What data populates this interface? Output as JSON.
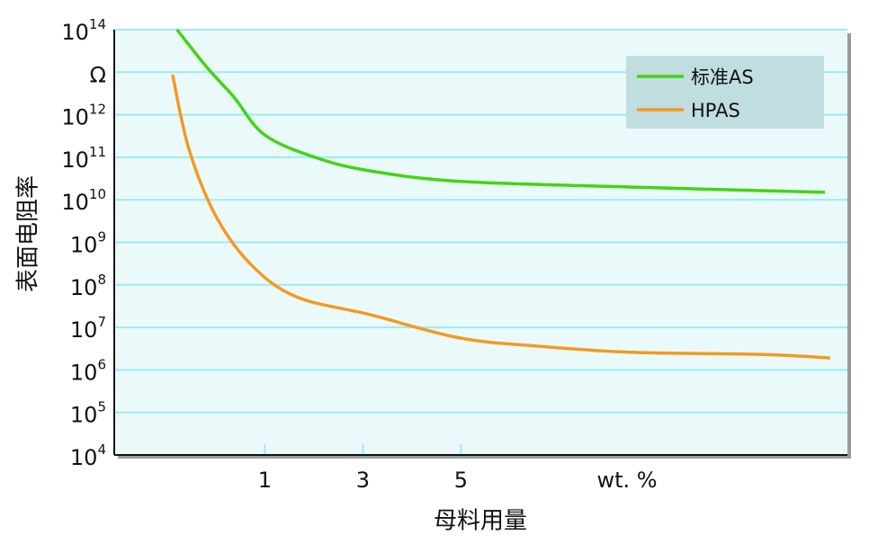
{
  "chart_data": {
    "type": "line",
    "y_label": "表面电阻率",
    "x_label": "母料用量",
    "x_unit": "wt. %",
    "log_y": true,
    "grid": true,
    "legend": "upper right",
    "xlim": [
      -2.07,
      12.88
    ],
    "xticks": [
      1,
      3,
      5
    ],
    "ylim": [
      10000,
      100000000000000.0
    ],
    "yticks": [
      {
        "value": 10000,
        "label": "10",
        "exponent": "4"
      },
      {
        "value": 100000,
        "label": "10",
        "exponent": "5"
      },
      {
        "value": 1000000,
        "label": "10",
        "exponent": "6"
      },
      {
        "value": 10000000,
        "label": "10",
        "exponent": "7"
      },
      {
        "value": 100000000,
        "label": "10",
        "exponent": "8"
      },
      {
        "value": 1000000000,
        "label": "10",
        "exponent": "9"
      },
      {
        "value": 10000000000,
        "label": "10",
        "exponent": "10"
      },
      {
        "value": 100000000000,
        "label": "10",
        "exponent": "11"
      },
      {
        "value": 1000000000000,
        "label": "10",
        "exponent": "12"
      },
      {
        "value": 10000000000000,
        "label": "Ω"
      },
      {
        "value": 100000000000000.0,
        "label": "10",
        "exponent": "14"
      }
    ],
    "series": [
      {
        "name": "标准AS",
        "color": "#44d414",
        "x": [
          -0.79,
          -0.18,
          0.37,
          0.99,
          2.02,
          3.14,
          4.99,
          8.44,
          12.42
        ],
        "values": [
          100000000000000.0,
          13000000000000,
          2600000000000,
          340000000000,
          100000000000,
          48000000000,
          27000000000,
          20000000000,
          15000000000
        ]
      },
      {
        "name": "HPAS",
        "color": "#f39a22",
        "x": [
          -0.88,
          -0.55,
          0,
          0.73,
          1.65,
          3.14,
          4.99,
          6.61,
          8.44,
          11.19,
          12.53
        ],
        "values": [
          8700000000000,
          160000000000,
          4200000000,
          290000000,
          52000000,
          20000000,
          5600000,
          3600000,
          2600000,
          2300000,
          1900000
        ]
      }
    ]
  }
}
